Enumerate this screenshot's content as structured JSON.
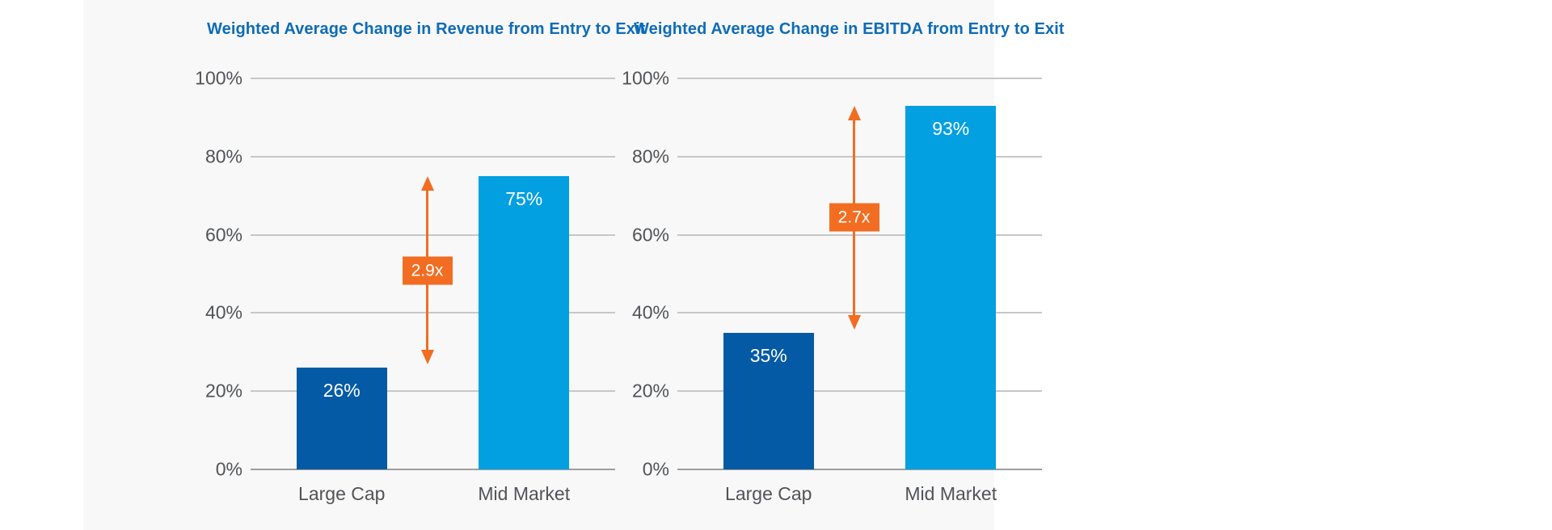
{
  "colors": {
    "page_background": "#ffffff",
    "panel_background": "#f8f8f9",
    "title": "#0e6cb6",
    "axis_text": "#515356",
    "gridline": "#c7c7c7",
    "zero_line": "#9e9e9e",
    "accent_orange": "#f26d22",
    "bar_label_text": "#ffffff"
  },
  "chart_data": [
    {
      "type": "bar",
      "title": "Weighted Average Change in Revenue from Entry to Exit",
      "categories": [
        "Large Cap",
        "Mid Market"
      ],
      "values": [
        26,
        75
      ],
      "value_labels": [
        "26%",
        "75%"
      ],
      "bar_colors": [
        "#045aa5",
        "#02a0e1"
      ],
      "ratio_annotation": "2.9x",
      "xlabel": "",
      "ylabel": "",
      "ylim": [
        0,
        100
      ],
      "ytick_labels": [
        "0%",
        "20%",
        "40%",
        "60%",
        "80%",
        "100%"
      ],
      "grid": true,
      "legend": "none"
    },
    {
      "type": "bar",
      "title": "Weighted Average Change in EBITDA from Entry to Exit",
      "categories": [
        "Large Cap",
        "Mid Market"
      ],
      "values": [
        35,
        93
      ],
      "value_labels": [
        "35%",
        "93%"
      ],
      "bar_colors": [
        "#045aa5",
        "#02a0e1"
      ],
      "ratio_annotation": "2.7x",
      "xlabel": "",
      "ylabel": "",
      "ylim": [
        0,
        100
      ],
      "ytick_labels": [
        "0%",
        "20%",
        "40%",
        "60%",
        "80%",
        "100%"
      ],
      "grid": true,
      "legend": "none"
    }
  ]
}
